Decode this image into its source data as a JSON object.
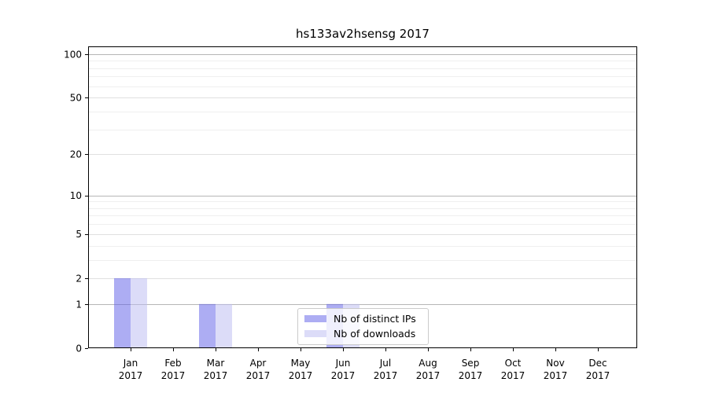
{
  "chart_data": {
    "type": "bar",
    "title": "hs133av2hsensg 2017",
    "categories": [
      {
        "month": "Jan",
        "year": "2017"
      },
      {
        "month": "Feb",
        "year": "2017"
      },
      {
        "month": "Mar",
        "year": "2017"
      },
      {
        "month": "Apr",
        "year": "2017"
      },
      {
        "month": "May",
        "year": "2017"
      },
      {
        "month": "Jun",
        "year": "2017"
      },
      {
        "month": "Jul",
        "year": "2017"
      },
      {
        "month": "Aug",
        "year": "2017"
      },
      {
        "month": "Sep",
        "year": "2017"
      },
      {
        "month": "Oct",
        "year": "2017"
      },
      {
        "month": "Nov",
        "year": "2017"
      },
      {
        "month": "Dec",
        "year": "2017"
      }
    ],
    "series": [
      {
        "name": "Nb of distinct IPs",
        "color": "rgba(92,92,232,0.5)",
        "values": [
          2,
          0,
          1,
          0,
          0,
          1,
          0,
          0,
          0,
          0,
          0,
          0
        ]
      },
      {
        "name": "Nb of downloads",
        "color": "rgba(185,185,241,0.5)",
        "values": [
          2,
          0,
          1,
          0,
          0,
          1,
          0,
          0,
          0,
          0,
          0,
          0
        ]
      }
    ],
    "yscale": "log1p",
    "ylim": [
      0,
      113
    ],
    "yticks_labeled": [
      0,
      1,
      2,
      5,
      10,
      20,
      50,
      100
    ],
    "yticks_power10": [
      1,
      10,
      100
    ],
    "yticks_minor": [
      3,
      4,
      6,
      7,
      8,
      9,
      30,
      40,
      60,
      70,
      80,
      90
    ],
    "grid": true,
    "legend_position": "lower center"
  },
  "colors": {
    "grid_major": "#b6b6b6",
    "grid_mid": "#e0e0e0",
    "grid_minor": "#efefef",
    "spine": "#000000",
    "tick": "#000000",
    "text": "#000000"
  }
}
